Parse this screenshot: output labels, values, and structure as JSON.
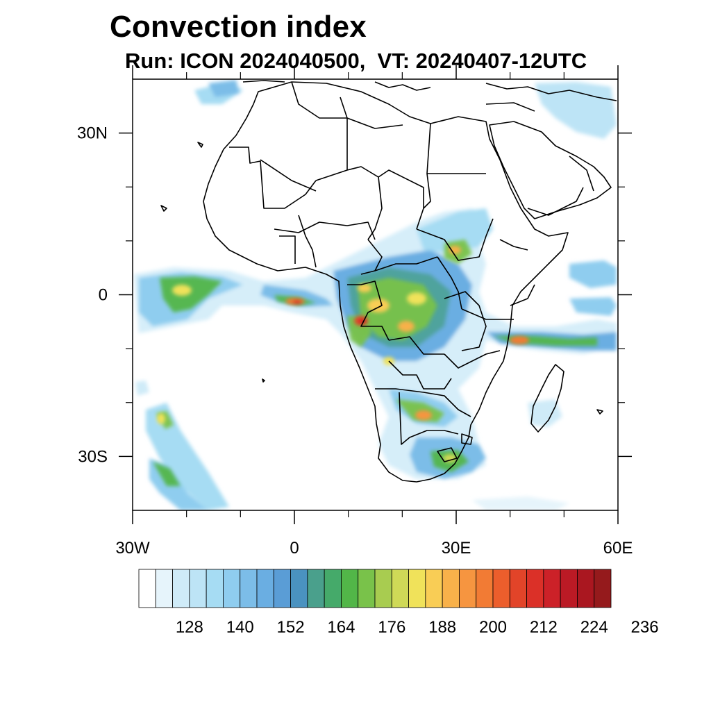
{
  "title": "Convection index",
  "subtitle": "Run: ICON 2024040500,  VT: 20240407-12UTC",
  "map": {
    "lon_range": [
      -30,
      60
    ],
    "lat_range": [
      -40,
      40
    ],
    "lon_ticks": [
      {
        "value": -30,
        "label": "30W"
      },
      {
        "value": 0,
        "label": "0"
      },
      {
        "value": 30,
        "label": "30E"
      },
      {
        "value": 60,
        "label": "60E"
      }
    ],
    "lat_ticks": [
      {
        "value": 30,
        "label": "30N"
      },
      {
        "value": 0,
        "label": "0"
      },
      {
        "value": -30,
        "label": "30S"
      }
    ],
    "minor_lon_ticks": [
      -20,
      -10,
      10,
      20,
      40,
      50
    ],
    "minor_lat_ticks": [
      20,
      10,
      -10,
      -20
    ]
  },
  "colorbar": {
    "colors": [
      "#ffffff",
      "#e6f4fb",
      "#cfebf8",
      "#bde4f6",
      "#a6dcf3",
      "#8fcdef",
      "#7cbde8",
      "#6aaee2",
      "#5a9dd6",
      "#4a92c0",
      "#4aa08c",
      "#45aa6a",
      "#52b648",
      "#79c24a",
      "#a8cc50",
      "#cfd957",
      "#f0e25a",
      "#f9cd55",
      "#f8b14a",
      "#f69540",
      "#f27b34",
      "#ec5e2c",
      "#e24429",
      "#db3028",
      "#cc2128",
      "#bb1a25",
      "#aa1720",
      "#951a1c"
    ],
    "labels": [
      "128",
      "140",
      "152",
      "164",
      "176",
      "188",
      "200",
      "212",
      "224",
      "236"
    ]
  }
}
